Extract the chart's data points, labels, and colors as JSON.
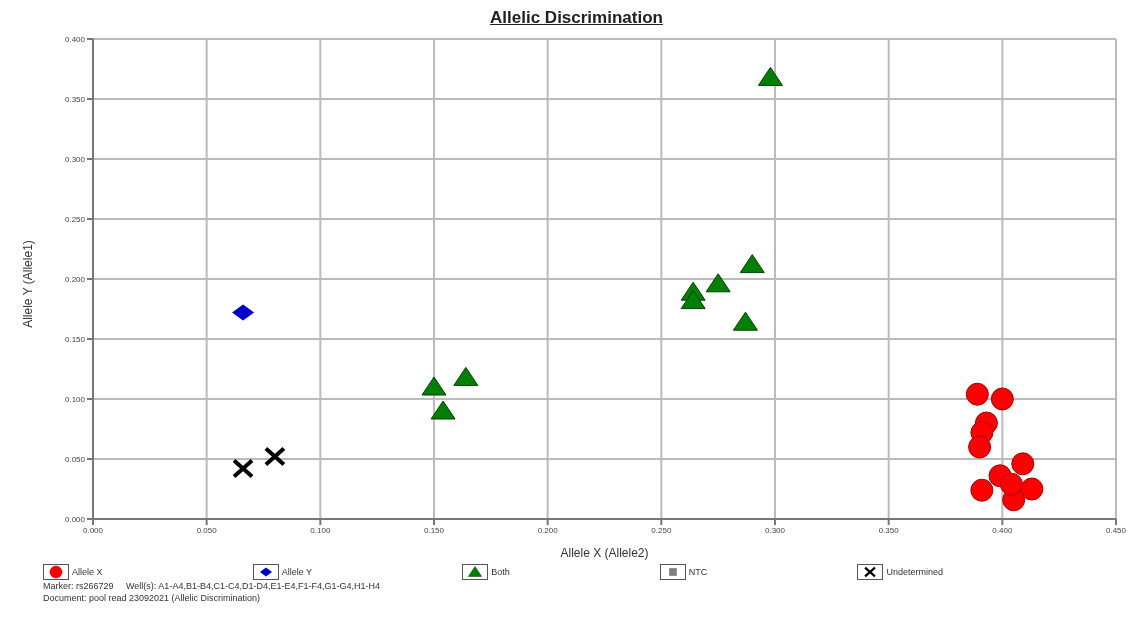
{
  "chart_data": {
    "type": "scatter",
    "title": "Allelic Discrimination",
    "xlabel": "Allele X (Allele2)",
    "ylabel": "Allele Y (Allele1)",
    "xlim": [
      0,
      0.45
    ],
    "ylim": [
      0,
      0.4
    ],
    "xticks": [
      {
        "value": 0,
        "label": "0.000"
      },
      {
        "value": 0.05,
        "label": "0.050"
      },
      {
        "value": 0.1,
        "label": "0.100"
      },
      {
        "value": 0.15,
        "label": "0.150"
      },
      {
        "value": 0.2,
        "label": "0.200"
      },
      {
        "value": 0.25,
        "label": "0.250"
      },
      {
        "value": 0.3,
        "label": "0.300"
      },
      {
        "value": 0.35,
        "label": "0.350"
      },
      {
        "value": 0.4,
        "label": "0.400"
      },
      {
        "value": 0.45,
        "label": "0.450"
      }
    ],
    "yticks": [
      {
        "value": 0,
        "label": "0.000"
      },
      {
        "value": 0.05,
        "label": "0.050"
      },
      {
        "value": 0.1,
        "label": "0.100"
      },
      {
        "value": 0.15,
        "label": "0.150"
      },
      {
        "value": 0.2,
        "label": "0.200"
      },
      {
        "value": 0.25,
        "label": "0.250"
      },
      {
        "value": 0.3,
        "label": "0.300"
      },
      {
        "value": 0.35,
        "label": "0.350"
      },
      {
        "value": 0.4,
        "label": "0.400"
      }
    ],
    "grid": true,
    "legend": "bottom",
    "series": [
      {
        "name": "Allele X",
        "color": "#ff0000",
        "marker": "circle",
        "x": [
          0.389,
          0.4,
          0.393,
          0.391,
          0.39,
          0.409,
          0.399,
          0.413,
          0.405,
          0.391,
          0.404
        ],
        "values": [
          0.104,
          0.1,
          0.08,
          0.072,
          0.06,
          0.046,
          0.036,
          0.025,
          0.016,
          0.024,
          0.029
        ]
      },
      {
        "name": "Allele Y",
        "color": "#0000cc",
        "marker": "diamond",
        "x": [
          0.066
        ],
        "values": [
          0.172
        ]
      },
      {
        "name": "Both",
        "color": "#008000",
        "marker": "triangle",
        "x": [
          0.298,
          0.29,
          0.275,
          0.264,
          0.264,
          0.287,
          0.15,
          0.164,
          0.154
        ],
        "values": [
          0.368,
          0.212,
          0.196,
          0.189,
          0.182,
          0.164,
          0.11,
          0.118,
          0.09
        ]
      },
      {
        "name": "NTC",
        "color": "#808080",
        "marker": "square"
      },
      {
        "name": "Undetermined",
        "color": "#000000",
        "marker": "cross",
        "x": [
          0.066,
          0.08
        ],
        "values": [
          0.042,
          0.052
        ]
      }
    ],
    "annotations": [
      "Marker: rs266729     Well(s): A1-A4,B1-B4,C1-C4,D1-D4,E1-E4,F1-F4,G1-G4,H1-H4",
      "Document: pool read 23092021 (Allelic Discrimination)"
    ]
  }
}
